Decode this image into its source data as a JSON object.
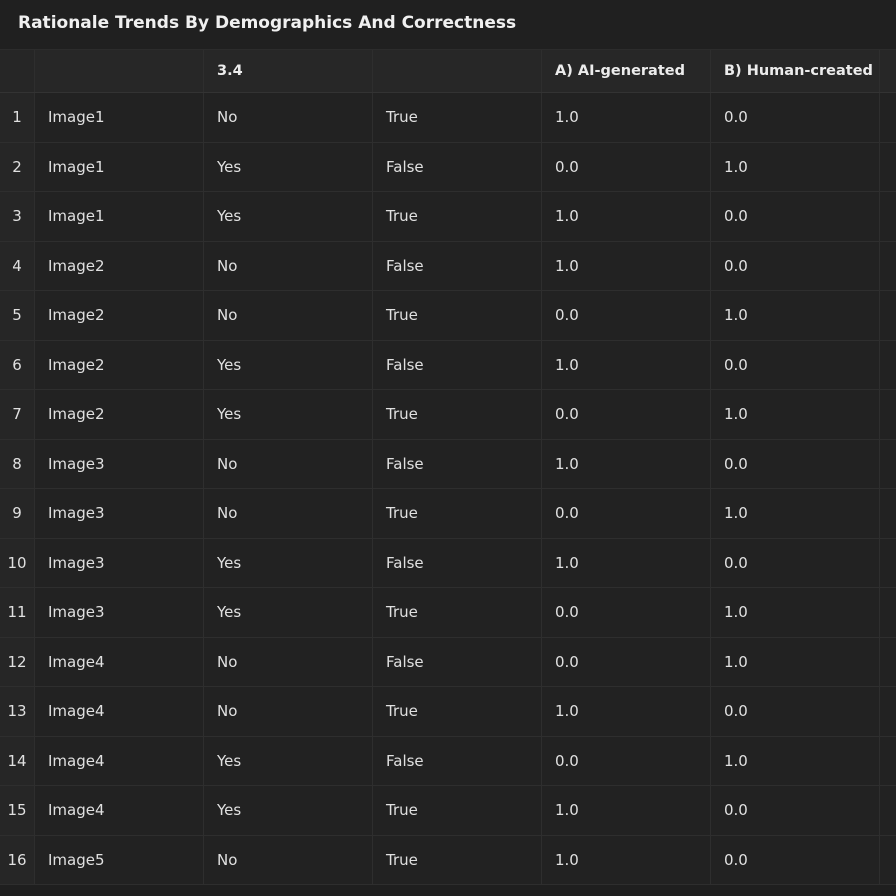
{
  "window": {
    "title": "Rationale Trends By Demographics And Correctness"
  },
  "table": {
    "columns": [
      "",
      "",
      "3.4",
      "",
      "A) AI-generated",
      "B) Human-created",
      ""
    ],
    "rows": [
      [
        "1",
        "Image1",
        "No",
        "True",
        "1.0",
        "0.0"
      ],
      [
        "2",
        "Image1",
        "Yes",
        "False",
        "0.0",
        "1.0"
      ],
      [
        "3",
        "Image1",
        "Yes",
        "True",
        "1.0",
        "0.0"
      ],
      [
        "4",
        "Image2",
        "No",
        "False",
        "1.0",
        "0.0"
      ],
      [
        "5",
        "Image2",
        "No",
        "True",
        "0.0",
        "1.0"
      ],
      [
        "6",
        "Image2",
        "Yes",
        "False",
        "1.0",
        "0.0"
      ],
      [
        "7",
        "Image2",
        "Yes",
        "True",
        "0.0",
        "1.0"
      ],
      [
        "8",
        "Image3",
        "No",
        "False",
        "1.0",
        "0.0"
      ],
      [
        "9",
        "Image3",
        "No",
        "True",
        "0.0",
        "1.0"
      ],
      [
        "10",
        "Image3",
        "Yes",
        "False",
        "1.0",
        "0.0"
      ],
      [
        "11",
        "Image3",
        "Yes",
        "True",
        "0.0",
        "1.0"
      ],
      [
        "12",
        "Image4",
        "No",
        "False",
        "0.0",
        "1.0"
      ],
      [
        "13",
        "Image4",
        "No",
        "True",
        "1.0",
        "0.0"
      ],
      [
        "14",
        "Image4",
        "Yes",
        "False",
        "0.0",
        "1.0"
      ],
      [
        "15",
        "Image4",
        "Yes",
        "True",
        "1.0",
        "0.0"
      ],
      [
        "16",
        "Image5",
        "No",
        "True",
        "1.0",
        "0.0"
      ]
    ]
  }
}
